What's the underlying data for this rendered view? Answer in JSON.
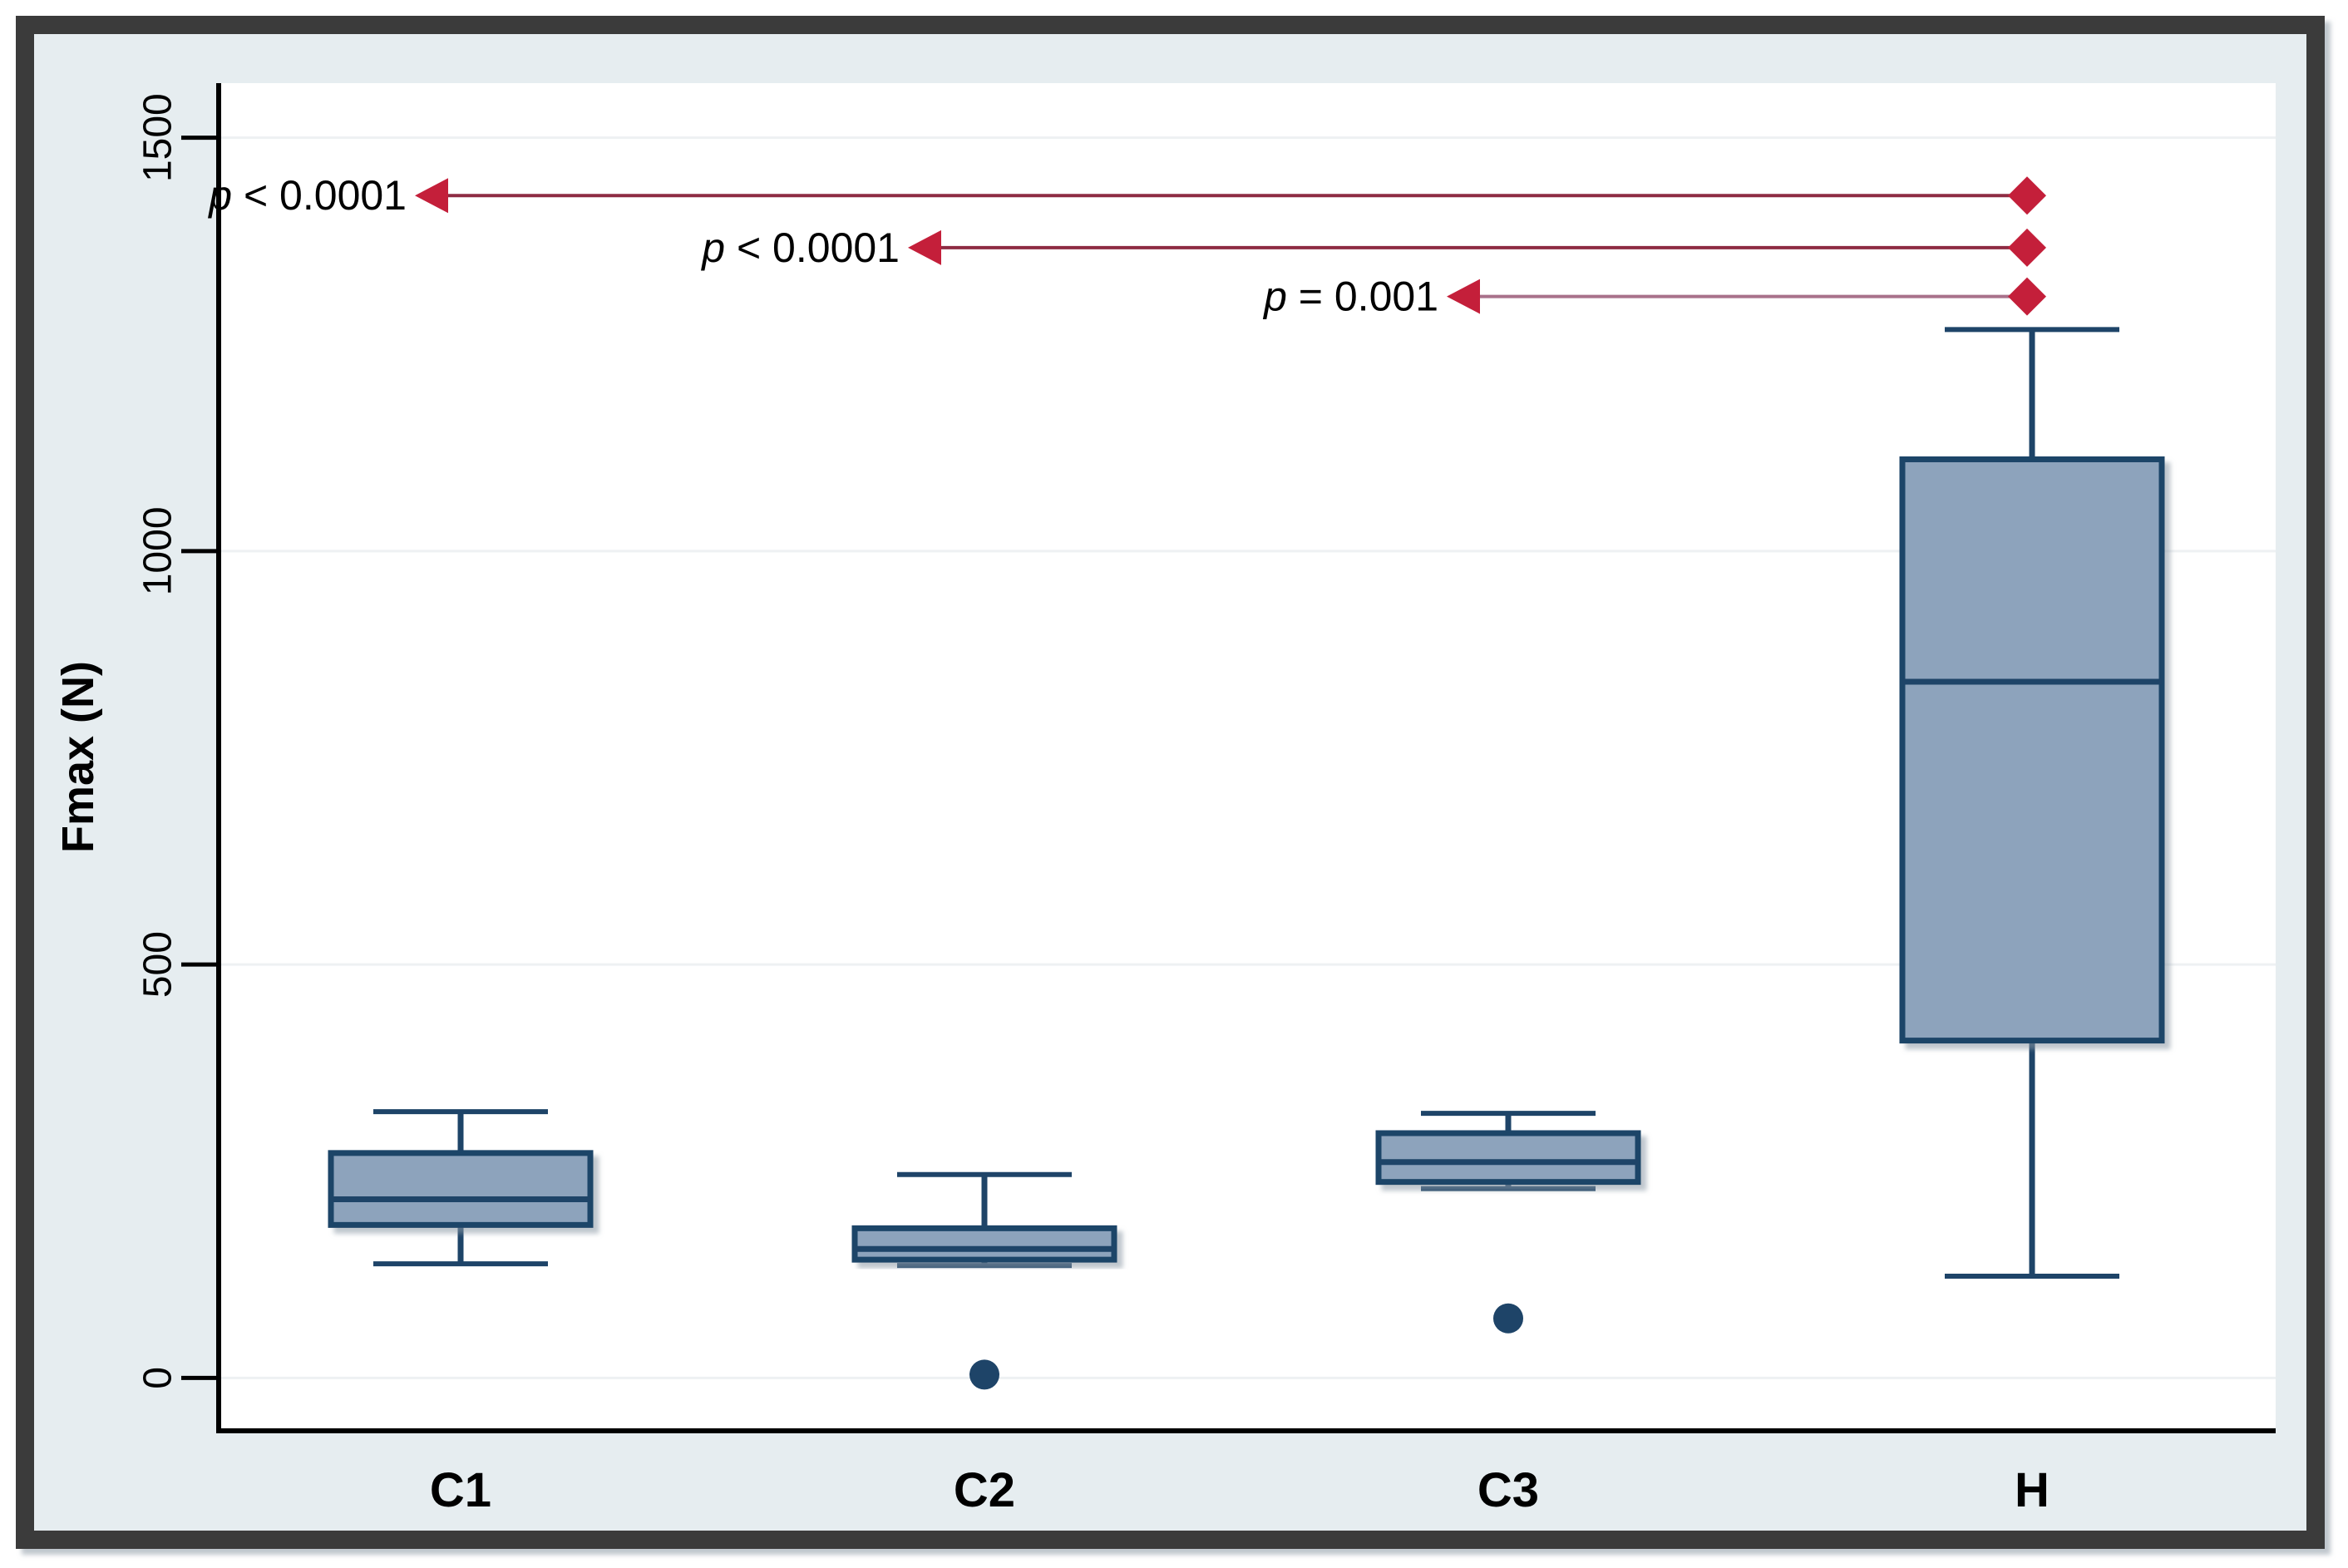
{
  "figure": {
    "kind": "statistical-boxplot",
    "description": "Box plots of Fmax (N) for groups C1, C2, C3 and H with pairwise p-value arrows"
  },
  "colors": {
    "box_fill": "#8da3bc",
    "box_stroke": "#1e4468",
    "outlier": "#1e4468",
    "diamond": "#c41f3a",
    "arrow_dark": "#8e2b43",
    "arrow_light": "#a8718a",
    "frame": "#3b3b3b",
    "figure_bg": "#e6edf0",
    "plot_bg": "#ffffff",
    "gridline": "#eef1f3",
    "axis": "#000000",
    "text": "#000000"
  },
  "chart_data": {
    "type": "box",
    "title": "",
    "xlabel": "",
    "ylabel": "Fmax (N)",
    "yticks": [
      0,
      500,
      1000,
      1500
    ],
    "ytick_labels": [
      "0",
      "500",
      "1000",
      "1500"
    ],
    "ylim": [
      -64,
      1566
    ],
    "grid": "horizontal-light",
    "legend": "none",
    "categories": [
      "C1",
      "C2",
      "C3",
      "H"
    ],
    "boxes": [
      {
        "category": "C1",
        "min": 138,
        "q1": 185,
        "median": 216,
        "q3": 272,
        "max": 322,
        "outliers": []
      },
      {
        "category": "C2",
        "min": 136,
        "q1": 143,
        "median": 156,
        "q3": 181,
        "max": 246,
        "outliers": [
          4
        ]
      },
      {
        "category": "C3",
        "min": 229,
        "q1": 237,
        "median": 261,
        "q3": 296,
        "max": 320,
        "outliers": [
          72
        ]
      },
      {
        "category": "H",
        "min": 123,
        "q1": 408,
        "median": 842,
        "q3": 1111,
        "max": 1268,
        "outliers": []
      }
    ],
    "annotations": [
      {
        "p_symbol": "p",
        "p_rest": " < 0.0001",
        "full_text": "p < 0.0001",
        "y_value": 1430,
        "target_category": "H",
        "line_color_key": "arrow_dark"
      },
      {
        "p_symbol": "p",
        "p_rest": " < 0.0001",
        "full_text": "p < 0.0001",
        "y_value": 1367,
        "target_category": "H",
        "line_color_key": "arrow_dark"
      },
      {
        "p_symbol": "p",
        "p_rest": " = 0.001",
        "full_text": "p = 0.001",
        "y_value": 1308,
        "target_category": "H",
        "line_color_key": "arrow_light"
      }
    ]
  }
}
